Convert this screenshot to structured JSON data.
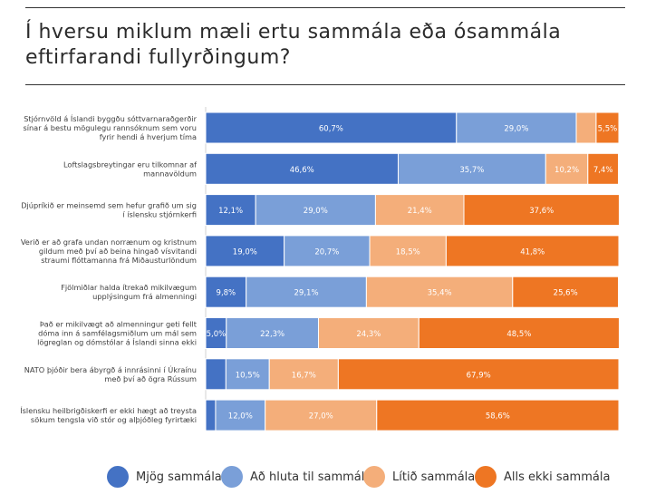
{
  "title": "Í hversu miklum mæli ertu sammála eða ósammála eftirfarandi fullyrðingum?",
  "colors": {
    "series": [
      "#4472C4",
      "#7A9FD8",
      "#F4AE7A",
      "#EE7623"
    ]
  },
  "legend": {
    "items": [
      "Mjög sammála",
      "Að hluta til sammála",
      "Lítið sammála",
      "Alls ekki sammála"
    ],
    "placement": "bottom"
  },
  "chart_data": {
    "type": "bar",
    "orientation": "horizontal",
    "stacked": "100%",
    "categories": [
      [
        "Stjórnvöld á Íslandi byggðu sóttvarnaraðgerðir",
        "sínar á bestu mögulegu rannsóknum sem voru",
        "fyrir hendi á hverjum tíma"
      ],
      [
        "Loftslagsbreytingar eru tilkomnar af",
        "mannavöldum"
      ],
      [
        "Djúpríkið er meinsemd sem hefur grafið um sig",
        "í íslensku stjórnkerfi"
      ],
      [
        "Verið er að grafa undan norrænum og kristnum",
        "gildum með því að beina hingað vísvitandi",
        "straumi flóttamanna frá Miðausturlöndum"
      ],
      [
        "Fjölmiðlar halda ítrekað mikilvægum",
        "upplýsingum frá almenningi"
      ],
      [
        "Það er mikilvægt að almenningur geti fellt",
        "dóma inn á samfélagsmiðlum um mál sem",
        "lögreglan og dómstólar á Íslandi sinna ekki"
      ],
      [
        "NATO þjóðir bera ábyrgð á innrásinni í Úkraínu",
        "með því að ögra Rússum"
      ],
      [
        "Íslensku heilbrigðiskerfi er ekki hægt að treysta",
        "sökum tengsla við stór og alþjóðleg fyrirtæki"
      ]
    ],
    "series": [
      {
        "name": "Mjög sammála",
        "values": [
          60.7,
          46.6,
          12.1,
          19.0,
          9.8,
          5.0,
          4.9,
          2.4
        ],
        "labels": [
          "60,7%",
          "46,6%",
          "12,1%",
          "19,0%",
          "9,8%",
          "5,0%",
          "",
          ""
        ]
      },
      {
        "name": "Að hluta til sammála",
        "values": [
          29.0,
          35.7,
          29.0,
          20.7,
          29.1,
          22.3,
          10.5,
          12.0
        ],
        "labels": [
          "29,0%",
          "35,7%",
          "29,0%",
          "20,7%",
          "29,1%",
          "22,3%",
          "10,5%",
          "12,0%"
        ]
      },
      {
        "name": "Lítið sammála",
        "values": [
          4.8,
          10.2,
          21.4,
          18.5,
          35.4,
          24.3,
          16.7,
          27.0
        ],
        "labels": [
          "",
          "10,2%",
          "21,4%",
          "18,5%",
          "35,4%",
          "24,3%",
          "16,7%",
          "27,0%"
        ]
      },
      {
        "name": "Alls ekki sammála",
        "values": [
          5.5,
          7.4,
          37.6,
          41.8,
          25.6,
          48.5,
          67.9,
          58.6
        ],
        "labels": [
          "5,5%",
          "7,4%",
          "37,6%",
          "41,8%",
          "25,6%",
          "48,5%",
          "67,9%",
          "58,6%"
        ]
      }
    ],
    "xlim": [
      0,
      100
    ],
    "grid": false
  }
}
